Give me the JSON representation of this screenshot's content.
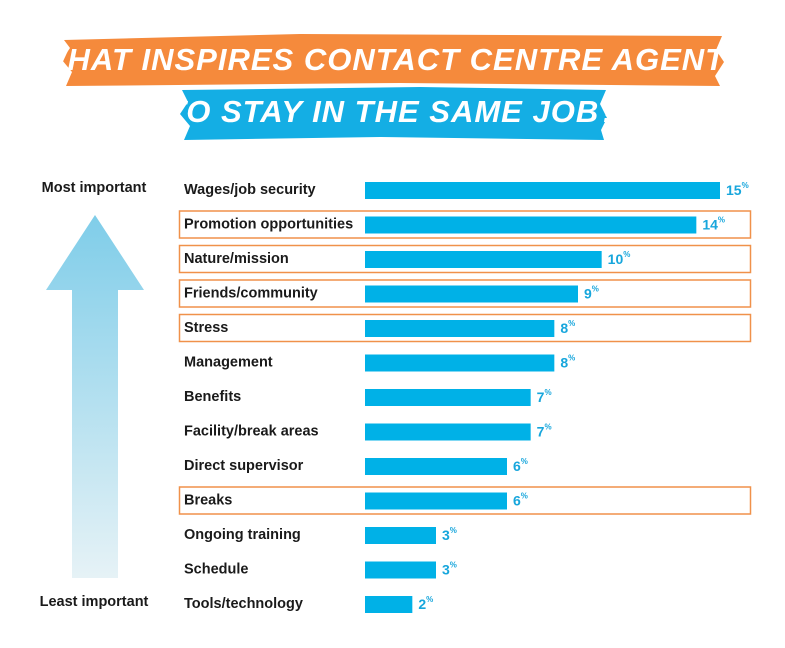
{
  "chart_data": {
    "type": "hbar",
    "title": [
      "WHAT INSPIRES CONTACT CENTRE AGENTS",
      "TO STAY IN THE SAME JOB?"
    ],
    "annotations": {
      "top": "Most important",
      "bottom": "Least important"
    },
    "categories": [
      "Wages/job security",
      "Promotion opportunities",
      "Nature/mission",
      "Friends/community",
      "Stress",
      "Management",
      "Benefits",
      "Facility/break areas",
      "Direct supervisor",
      "Breaks",
      "Ongoing training",
      "Schedule",
      "Tools/technology"
    ],
    "values": [
      15,
      14,
      10,
      9,
      8,
      8,
      7,
      7,
      6,
      6,
      3,
      3,
      2
    ],
    "value_labels": [
      "15%",
      "14%",
      "10%",
      "9%",
      "8%",
      "8%",
      "7%",
      "7%",
      "6%",
      "6%",
      "3%",
      "3%",
      "2%"
    ],
    "highlighted": [
      false,
      true,
      true,
      true,
      true,
      false,
      false,
      false,
      false,
      true,
      false,
      false,
      false
    ],
    "color": "#00b1e7",
    "label_color": "#17a6dc",
    "highlight_color": "#f0914a"
  }
}
